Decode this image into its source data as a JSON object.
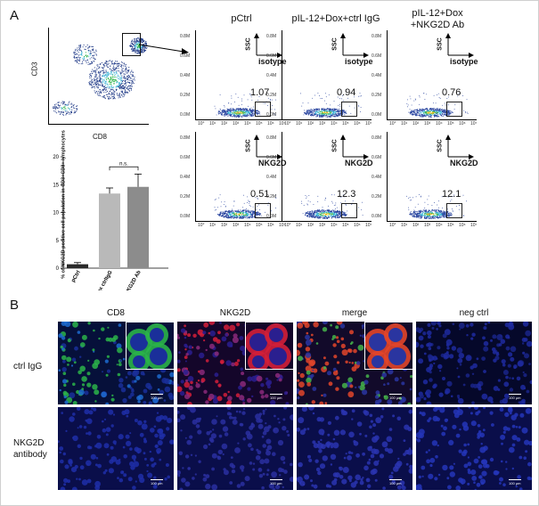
{
  "panel_a": {
    "letter": "A",
    "overview": {
      "y_label": "CD3",
      "x_label": "CD8"
    },
    "bar_chart": {
      "y_label": "% of NKG2D positive cell population in CD3+CD8+ lymphocytes",
      "significance": "n.s.",
      "y_ticks": [
        "20",
        "15",
        "10",
        "5",
        "0"
      ]
    },
    "conditions": [
      {
        "label": "pCtrl"
      },
      {
        "label": "pIL-12+Dox+ctrl IgG"
      },
      {
        "label": "pIL-12+Dox\n+NKG2D Ab"
      }
    ],
    "ssc_label": "SSC",
    "isotype_label": "isotype",
    "nkg2d_label": "NKG2D",
    "isotype_values": [
      "1.07",
      "0.94",
      "0.76"
    ],
    "nkg2d_values": [
      "0.51",
      "12.3",
      "12.1"
    ],
    "facs_y_ticks": [
      "0.0M",
      "0.2M",
      "0.4M",
      "0.6M",
      "0.8M"
    ],
    "facs_x_ticks": [
      "10°",
      "10¹",
      "10²",
      "10³",
      "10⁴",
      "10⁵",
      "10⁶",
      "10⁷"
    ]
  },
  "chart_data": {
    "type": "bar",
    "categories": [
      "pCtrl",
      "pIL-12+Dox ctrlIgG",
      "pIL-12+Dox NKG2D Ab"
    ],
    "values": [
      0.7,
      13.4,
      14.6
    ],
    "errors": [
      0.3,
      1.0,
      2.3
    ],
    "ylim": [
      0,
      20
    ],
    "ylabel": "% of NKG2D positive cell population in CD3+CD8+ lymphocytes",
    "annotation": "n.s.",
    "colors": [
      "#2a2a2a",
      "#b9b9b9",
      "#8c8c8c"
    ]
  },
  "panel_b": {
    "letter": "B",
    "columns": [
      "CD8",
      "NKG2D",
      "merge",
      "neg ctrl"
    ],
    "rows": [
      "ctrl IgG",
      "NKG2D\nantibody"
    ],
    "scale_label": "100 µm"
  }
}
